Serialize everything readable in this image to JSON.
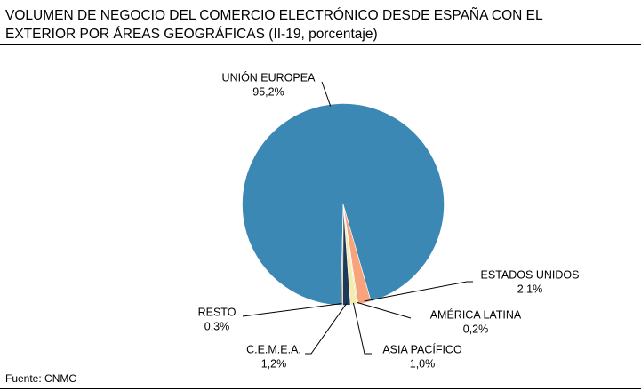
{
  "chart_data": {
    "type": "pie",
    "title": "VOLUMEN DE NEGOCIO DEL COMERCIO ELECTRÓNICO DESDE ESPAÑA CON EL EXTERIOR POR ÁREAS GEOGRÁFICAS (II-19, porcentaje)",
    "categories": [
      "UNIÓN EUROPEA",
      "ESTADOS UNIDOS",
      "AMÉRICA LATINA",
      "ASIA PACÍFICO",
      "C.E.M.E.A.",
      "RESTO"
    ],
    "values": [
      95.2,
      2.1,
      0.2,
      1.0,
      1.2,
      0.3
    ],
    "value_labels": [
      "95,2%",
      "2,1%",
      "0,2%",
      "1,0%",
      "1,2%",
      "0,3%"
    ],
    "colors": [
      "#3a88b3",
      "#f8a37c",
      "#c9d98e",
      "#f4ecae",
      "#1e3a58",
      "#b3a28e"
    ],
    "source": "Fuente: CNMC"
  }
}
